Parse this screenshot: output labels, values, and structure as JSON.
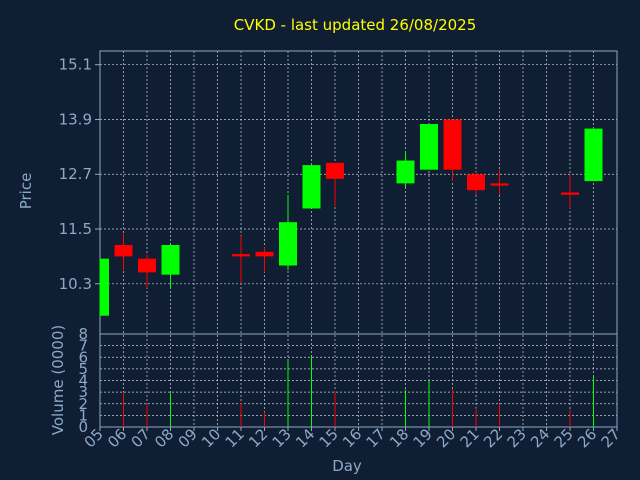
{
  "chart_data": {
    "type": "candlestick",
    "title": "CVKD - last updated 26/08/2025",
    "xlabel": "Day",
    "price_panel": {
      "ylabel": "Price",
      "ylim": [
        9.2,
        15.4
      ],
      "yticks": [
        "10.3",
        "11.5",
        "12.7",
        "13.9",
        "15.1"
      ],
      "ytick_values": [
        10.3,
        11.5,
        12.7,
        13.9,
        15.1
      ]
    },
    "volume_panel": {
      "ylabel": "Volume (0000)",
      "ylim": [
        0,
        8
      ],
      "yticks": [
        "0",
        "1",
        "2",
        "3",
        "4",
        "5",
        "6",
        "7",
        "8"
      ],
      "ytick_values": [
        0,
        1,
        2,
        3,
        4,
        5,
        6,
        7,
        8
      ]
    },
    "x_ticks": [
      "05",
      "06",
      "07",
      "08",
      "09",
      "10",
      "11",
      "12",
      "13",
      "14",
      "15",
      "16",
      "17",
      "18",
      "19",
      "20",
      "21",
      "22",
      "23",
      "24",
      "25",
      "26",
      "27"
    ],
    "grid": true,
    "colors": {
      "up": "#00ff00",
      "down": "#ff0000",
      "grid": "#c8d0d8",
      "frame": "#8da9c8",
      "background": "#0f1e32"
    },
    "candles": [
      {
        "day": 5,
        "open": 9.6,
        "high": 10.85,
        "low": 9.6,
        "close": 10.85,
        "volume": 0
      },
      {
        "day": 6,
        "open": 11.15,
        "high": 11.4,
        "low": 10.6,
        "close": 10.9,
        "volume": 3.0
      },
      {
        "day": 7,
        "open": 10.85,
        "high": 10.95,
        "low": 10.2,
        "close": 10.55,
        "volume": 2.0
      },
      {
        "day": 8,
        "open": 10.5,
        "high": 11.15,
        "low": 10.2,
        "close": 11.15,
        "volume": 2.9
      },
      {
        "day": 11,
        "open": 10.95,
        "high": 11.35,
        "low": 10.3,
        "close": 10.9,
        "volume": 2.1
      },
      {
        "day": 12,
        "open": 11.0,
        "high": 11.1,
        "low": 10.55,
        "close": 10.9,
        "volume": 1.3
      },
      {
        "day": 13,
        "open": 10.7,
        "high": 12.25,
        "low": 10.6,
        "close": 11.65,
        "volume": 5.7
      },
      {
        "day": 14,
        "open": 11.95,
        "high": 12.9,
        "low": 11.95,
        "close": 12.9,
        "volume": 6.1
      },
      {
        "day": 15,
        "open": 12.95,
        "high": 12.95,
        "low": 12.0,
        "close": 12.6,
        "volume": 3.1
      },
      {
        "day": 18,
        "open": 12.5,
        "high": 13.2,
        "low": 12.4,
        "close": 13.0,
        "volume": 3.2
      },
      {
        "day": 19,
        "open": 12.8,
        "high": 13.8,
        "low": 12.8,
        "close": 13.8,
        "volume": 4.1
      },
      {
        "day": 20,
        "open": 13.9,
        "high": 13.9,
        "low": 12.55,
        "close": 12.8,
        "volume": 3.3
      },
      {
        "day": 21,
        "open": 12.7,
        "high": 12.75,
        "low": 12.25,
        "close": 12.35,
        "volume": 1.6
      },
      {
        "day": 22,
        "open": 12.5,
        "high": 12.8,
        "low": 12.25,
        "close": 12.45,
        "volume": 2.0
      },
      {
        "day": 25,
        "open": 12.3,
        "high": 12.7,
        "low": 11.95,
        "close": 12.25,
        "volume": 1.5
      },
      {
        "day": 26,
        "open": 12.55,
        "high": 13.7,
        "low": 12.55,
        "close": 13.7,
        "volume": 4.3
      }
    ]
  }
}
